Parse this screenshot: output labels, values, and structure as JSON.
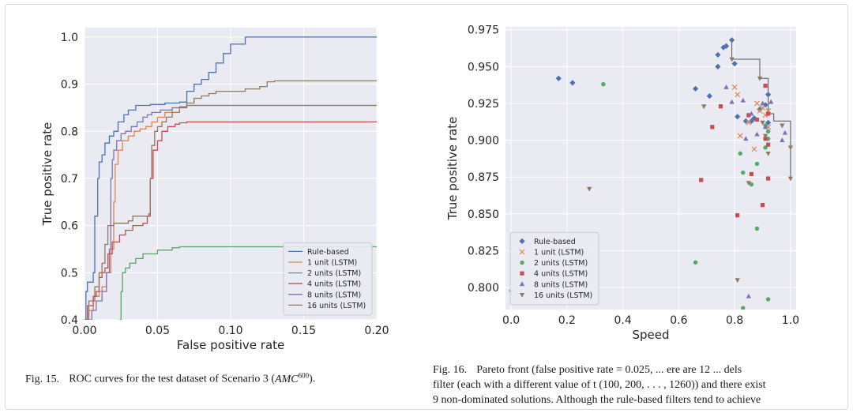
{
  "captions": {
    "fig15": {
      "label": "Fig. 15.",
      "text": "ROC curves for the test dataset of Scenario 3 (",
      "math": "AMC",
      "sup": "600",
      "end": ")."
    },
    "fig16": {
      "label": "Fig. 16.",
      "line1": "Pareto front (false positive rate = 0.025, ... ere are 12 ... dels",
      "line2": "filter (each with a different value of t (100, 200, . . . , 1260)) and there exist",
      "line3": "9 non-dominated solutions. Although the rule-based filters tend to achieve"
    }
  },
  "chart_data": [
    {
      "id": "roc",
      "type": "line",
      "xlabel": "False positive rate",
      "ylabel": "True positive rate",
      "xlim": [
        0.0,
        0.2
      ],
      "ylim": [
        0.4,
        1.02
      ],
      "xticks": [
        "0.00",
        "0.05",
        "0.10",
        "0.15",
        "0.20"
      ],
      "yticks": [
        "0.4",
        "0.5",
        "0.6",
        "0.7",
        "0.8",
        "0.9",
        "1.0"
      ],
      "grid": true,
      "legend_position": "bottom-right",
      "series": [
        {
          "name": "Rule-based",
          "color": "#4c72b0",
          "points": [
            [
              0.0,
              0.4
            ],
            [
              0.001,
              0.46
            ],
            [
              0.002,
              0.48
            ],
            [
              0.005,
              0.48
            ],
            [
              0.006,
              0.5
            ],
            [
              0.007,
              0.62
            ],
            [
              0.009,
              0.7
            ],
            [
              0.01,
              0.735
            ],
            [
              0.012,
              0.75
            ],
            [
              0.014,
              0.775
            ],
            [
              0.017,
              0.79
            ],
            [
              0.02,
              0.8
            ],
            [
              0.023,
              0.82
            ],
            [
              0.027,
              0.835
            ],
            [
              0.03,
              0.845
            ],
            [
              0.035,
              0.855
            ],
            [
              0.045,
              0.857
            ],
            [
              0.055,
              0.86
            ],
            [
              0.065,
              0.862
            ],
            [
              0.07,
              0.885
            ],
            [
              0.075,
              0.9
            ],
            [
              0.08,
              0.91
            ],
            [
              0.085,
              0.925
            ],
            [
              0.09,
              0.945
            ],
            [
              0.095,
              0.965
            ],
            [
              0.1,
              0.985
            ],
            [
              0.11,
              1.0
            ],
            [
              0.2,
              1.0
            ]
          ]
        },
        {
          "name": "1 unit (LSTM)",
          "color": "#dd8452",
          "points": [
            [
              0.0,
              0.4
            ],
            [
              0.003,
              0.42
            ],
            [
              0.006,
              0.45
            ],
            [
              0.01,
              0.46
            ],
            [
              0.012,
              0.47
            ],
            [
              0.015,
              0.5
            ],
            [
              0.018,
              0.55
            ],
            [
              0.02,
              0.65
            ],
            [
              0.021,
              0.73
            ],
            [
              0.023,
              0.76
            ],
            [
              0.026,
              0.78
            ],
            [
              0.03,
              0.79
            ],
            [
              0.034,
              0.8
            ],
            [
              0.038,
              0.805
            ],
            [
              0.042,
              0.81
            ],
            [
              0.046,
              0.82
            ],
            [
              0.05,
              0.83
            ],
            [
              0.055,
              0.84
            ],
            [
              0.06,
              0.85
            ],
            [
              0.065,
              0.852
            ],
            [
              0.07,
              0.855
            ],
            [
              0.2,
              0.855
            ]
          ]
        },
        {
          "name": "2 units (LSTM)",
          "color": "#55a868",
          "points": [
            [
              0.024,
              0.4
            ],
            [
              0.025,
              0.46
            ],
            [
              0.026,
              0.5
            ],
            [
              0.028,
              0.51
            ],
            [
              0.031,
              0.52
            ],
            [
              0.035,
              0.53
            ],
            [
              0.04,
              0.54
            ],
            [
              0.05,
              0.548
            ],
            [
              0.06,
              0.553
            ],
            [
              0.065,
              0.555
            ],
            [
              0.2,
              0.555
            ]
          ]
        },
        {
          "name": "4 units (LSTM)",
          "color": "#c44e52",
          "points": [
            [
              0.0,
              0.4
            ],
            [
              0.002,
              0.43
            ],
            [
              0.006,
              0.45
            ],
            [
              0.008,
              0.46
            ],
            [
              0.01,
              0.49
            ],
            [
              0.012,
              0.5
            ],
            [
              0.014,
              0.51
            ],
            [
              0.016,
              0.54
            ],
            [
              0.019,
              0.565
            ],
            [
              0.024,
              0.58
            ],
            [
              0.028,
              0.59
            ],
            [
              0.033,
              0.6
            ],
            [
              0.04,
              0.605
            ],
            [
              0.043,
              0.62
            ],
            [
              0.045,
              0.7
            ],
            [
              0.047,
              0.76
            ],
            [
              0.05,
              0.78
            ],
            [
              0.053,
              0.8
            ],
            [
              0.057,
              0.81
            ],
            [
              0.062,
              0.815
            ],
            [
              0.065,
              0.818
            ],
            [
              0.07,
              0.82
            ],
            [
              0.2,
              0.82
            ]
          ]
        },
        {
          "name": "8 units (LSTM)",
          "color": "#8172b2",
          "points": [
            [
              0.0,
              0.4
            ],
            [
              0.005,
              0.42
            ],
            [
              0.008,
              0.44
            ],
            [
              0.012,
              0.46
            ],
            [
              0.015,
              0.5
            ],
            [
              0.017,
              0.55
            ],
            [
              0.018,
              0.7
            ],
            [
              0.019,
              0.74
            ],
            [
              0.02,
              0.76
            ],
            [
              0.022,
              0.78
            ],
            [
              0.025,
              0.795
            ],
            [
              0.028,
              0.8
            ],
            [
              0.032,
              0.81
            ],
            [
              0.036,
              0.82
            ],
            [
              0.04,
              0.83
            ],
            [
              0.043,
              0.835
            ],
            [
              0.046,
              0.84
            ],
            [
              0.052,
              0.845
            ],
            [
              0.06,
              0.85
            ],
            [
              0.065,
              0.852
            ],
            [
              0.07,
              0.855
            ],
            [
              0.2,
              0.855
            ]
          ]
        },
        {
          "name": "16 units (LSTM)",
          "color": "#937860",
          "points": [
            [
              0.0,
              0.4
            ],
            [
              0.003,
              0.44
            ],
            [
              0.007,
              0.47
            ],
            [
              0.01,
              0.5
            ],
            [
              0.012,
              0.52
            ],
            [
              0.014,
              0.56
            ],
            [
              0.016,
              0.6
            ],
            [
              0.02,
              0.605
            ],
            [
              0.026,
              0.605
            ],
            [
              0.03,
              0.61
            ],
            [
              0.033,
              0.62
            ],
            [
              0.044,
              0.625
            ],
            [
              0.045,
              0.7
            ],
            [
              0.046,
              0.77
            ],
            [
              0.048,
              0.8
            ],
            [
              0.05,
              0.81
            ],
            [
              0.053,
              0.82
            ],
            [
              0.056,
              0.83
            ],
            [
              0.06,
              0.84
            ],
            [
              0.065,
              0.85
            ],
            [
              0.07,
              0.86
            ],
            [
              0.075,
              0.87
            ],
            [
              0.08,
              0.875
            ],
            [
              0.085,
              0.88
            ],
            [
              0.09,
              0.885
            ],
            [
              0.1,
              0.885
            ],
            [
              0.11,
              0.89
            ],
            [
              0.12,
              0.895
            ],
            [
              0.125,
              0.905
            ],
            [
              0.13,
              0.907
            ],
            [
              0.2,
              0.907
            ]
          ]
        }
      ]
    },
    {
      "id": "pareto",
      "type": "scatter",
      "xlabel": "Speed",
      "ylabel": "True positive rate",
      "xlim": [
        -0.02,
        1.02
      ],
      "ylim": [
        0.785,
        0.977
      ],
      "xticks": [
        "0.0",
        "0.2",
        "0.4",
        "0.6",
        "0.8",
        "1.0"
      ],
      "yticks": [
        "0.800",
        "0.825",
        "0.850",
        "0.875",
        "0.900",
        "0.925",
        "0.950",
        "0.975"
      ],
      "grid": true,
      "legend_position": "bottom-left",
      "pareto_front": [
        [
          0.79,
          0.968
        ],
        [
          0.79,
          0.955
        ],
        [
          0.89,
          0.955
        ],
        [
          0.89,
          0.942
        ],
        [
          0.92,
          0.942
        ],
        [
          0.92,
          0.918
        ],
        [
          0.94,
          0.918
        ],
        [
          0.94,
          0.913
        ],
        [
          1.0,
          0.913
        ],
        [
          1.0,
          0.874
        ]
      ],
      "series": [
        {
          "name": "Rule-based",
          "color": "#4c72b0",
          "marker": "diamond",
          "points": [
            [
              0.17,
              0.942
            ],
            [
              0.22,
              0.939
            ],
            [
              0.66,
              0.935
            ],
            [
              0.71,
              0.93
            ],
            [
              0.74,
              0.95
            ],
            [
              0.74,
              0.958
            ],
            [
              0.76,
              0.963
            ],
            [
              0.77,
              0.964
            ],
            [
              0.79,
              0.968
            ],
            [
              0.8,
              0.952
            ],
            [
              0.81,
              0.916
            ],
            [
              0.84,
              0.913
            ],
            [
              0.86,
              0.913
            ],
            [
              0.87,
              0.915
            ],
            [
              0.89,
              0.921
            ],
            [
              0.91,
              0.924
            ],
            [
              0.92,
              0.931
            ],
            [
              0.92,
              0.912
            ]
          ]
        },
        {
          "name": "1 unit (LSTM)",
          "color": "#dd8452",
          "marker": "x",
          "points": [
            [
              0.8,
              0.936
            ],
            [
              0.81,
              0.931
            ],
            [
              0.82,
              0.903
            ],
            [
              0.85,
              0.912
            ],
            [
              0.87,
              0.894
            ],
            [
              0.88,
              0.925
            ],
            [
              0.89,
              0.92
            ],
            [
              0.9,
              0.922
            ],
            [
              0.91,
              0.917
            ],
            [
              0.92,
              0.909
            ],
            [
              0.92,
              0.92
            ]
          ]
        },
        {
          "name": "2 units (LSTM)",
          "color": "#55a868",
          "marker": "circle",
          "points": [
            [
              0.33,
              0.938
            ],
            [
              0.66,
              0.817
            ],
            [
              0.82,
              0.891
            ],
            [
              0.83,
              0.878
            ],
            [
              0.86,
              0.87
            ],
            [
              0.88,
              0.884
            ],
            [
              0.88,
              0.84
            ],
            [
              0.83,
              0.786
            ],
            [
              0.92,
              0.792
            ],
            [
              0.91,
              0.91
            ],
            [
              0.92,
              0.906
            ],
            [
              0.92,
              0.901
            ],
            [
              0.91,
              0.895
            ]
          ]
        },
        {
          "name": "4 units (LSTM)",
          "color": "#c44e52",
          "marker": "square",
          "points": [
            [
              0.68,
              0.873
            ],
            [
              0.72,
              0.909
            ],
            [
              0.75,
              0.923
            ],
            [
              0.81,
              0.849
            ],
            [
              0.85,
              0.917
            ],
            [
              0.86,
              0.877
            ],
            [
              0.88,
              0.914
            ],
            [
              0.9,
              0.856
            ],
            [
              0.91,
              0.937
            ],
            [
              0.92,
              0.874
            ],
            [
              0.92,
              0.897
            ],
            [
              0.92,
              0.918
            ],
            [
              0.91,
              0.901
            ]
          ]
        },
        {
          "name": "8 units (LSTM)",
          "color": "#8172b2",
          "marker": "triangle-up",
          "points": [
            [
              0.77,
              0.936
            ],
            [
              0.79,
              0.926
            ],
            [
              0.83,
              0.927
            ],
            [
              0.84,
              0.901
            ],
            [
              0.86,
              0.918
            ],
            [
              0.88,
              0.904
            ],
            [
              0.9,
              0.925
            ],
            [
              0.91,
              0.909
            ],
            [
              0.93,
              0.926
            ],
            [
              0.98,
              0.905
            ],
            [
              0.85,
              0.794
            ],
            [
              0.97,
              0.9
            ]
          ]
        },
        {
          "name": "16 units (LSTM)",
          "color": "#937860",
          "marker": "triangle-down",
          "points": [
            [
              0.0,
              0.797
            ],
            [
              0.28,
              0.867
            ],
            [
              0.69,
              0.923
            ],
            [
              0.79,
              0.955
            ],
            [
              0.81,
              0.805
            ],
            [
              0.85,
              0.871
            ],
            [
              0.89,
              0.942
            ],
            [
              0.9,
              0.912
            ],
            [
              0.91,
              0.903
            ],
            [
              0.92,
              0.891
            ],
            [
              0.97,
              0.91
            ],
            [
              1.0,
              0.895
            ],
            [
              1.0,
              0.874
            ]
          ]
        }
      ]
    }
  ]
}
